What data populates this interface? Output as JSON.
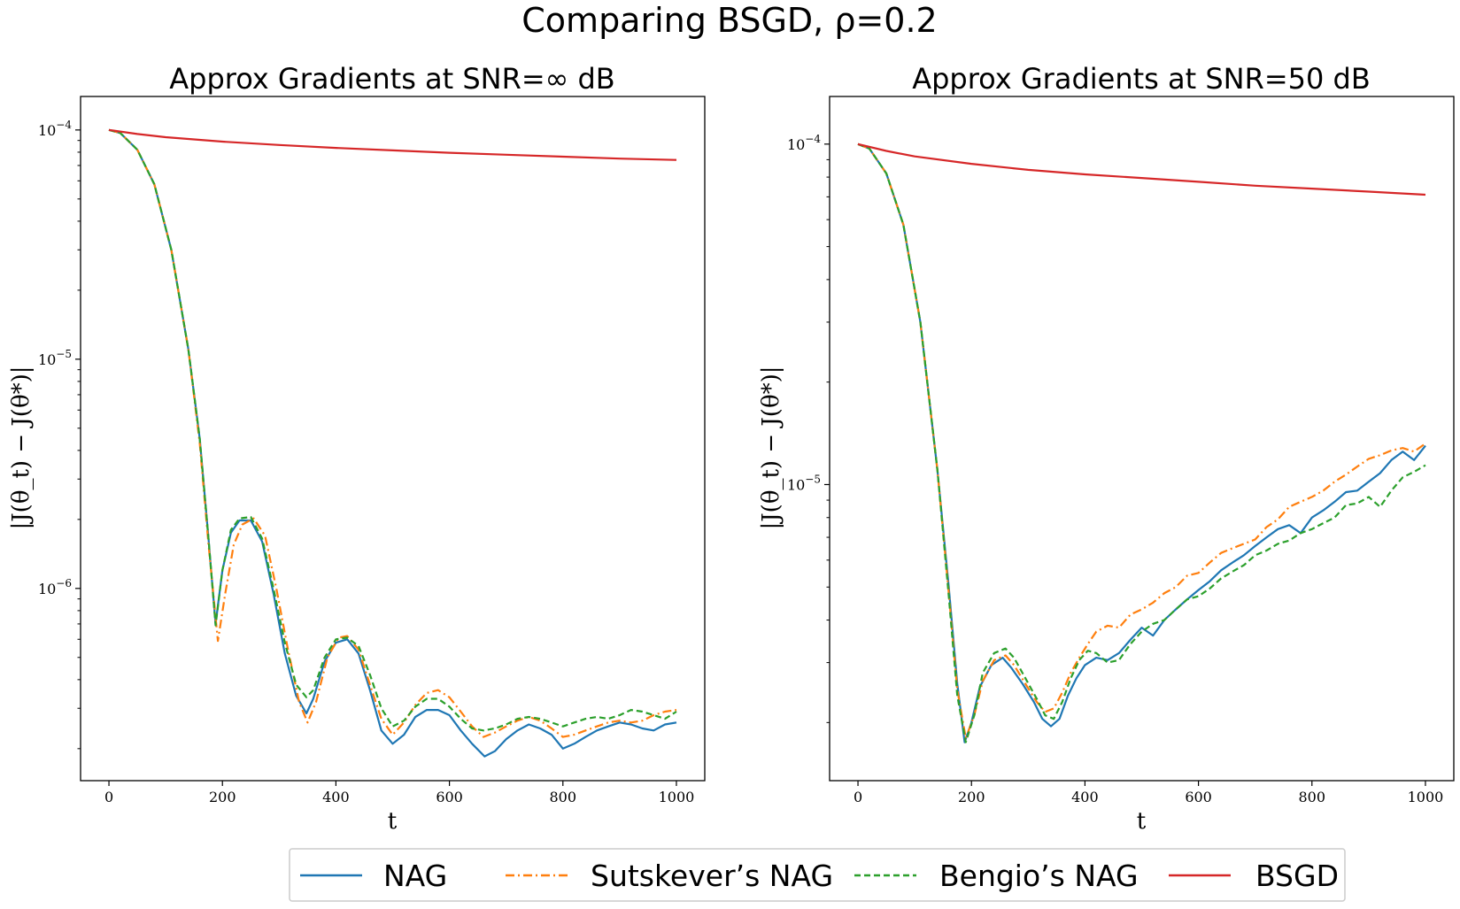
{
  "figure": {
    "suptitle": "Comparing BSGD, ρ=0.2"
  },
  "legend": {
    "placement": "lower-center",
    "entries": [
      {
        "label": "NAG",
        "color": "#1f77b4",
        "style": "solid"
      },
      {
        "label": "Sutskever’s NAG",
        "color": "#ff7f0e",
        "style": "dashdot"
      },
      {
        "label": "Bengio’s NAG",
        "color": "#2ca02c",
        "style": "dashed"
      },
      {
        "label": "BSGD",
        "color": "#d62728",
        "style": "solid"
      }
    ]
  },
  "chart_data": [
    {
      "type": "line",
      "title": "Approx Gradients at SNR=∞ dB",
      "xlabel": "t",
      "ylabel": "|J(θ_t) − J(θ*)|",
      "yscale": "log",
      "xlim": [
        -50,
        1050
      ],
      "ylim": [
        1.45e-07,
        0.00014
      ],
      "xticks": [
        0,
        200,
        400,
        600,
        800,
        1000
      ],
      "yticks": [
        {
          "value": 1e-06,
          "label": "10",
          "exp": "−6"
        },
        {
          "value": 1e-05,
          "label": "10",
          "exp": "−5"
        },
        {
          "value": 0.0001,
          "label": "10",
          "exp": "−4"
        }
      ],
      "grid": false,
      "series": [
        {
          "name": "NAG",
          "color": "#1f77b4",
          "style": "solid",
          "x": [
            0,
            20,
            50,
            80,
            110,
            140,
            160,
            175,
            188,
            200,
            215,
            230,
            250,
            270,
            290,
            310,
            330,
            348,
            360,
            380,
            400,
            420,
            440,
            460,
            480,
            500,
            520,
            540,
            560,
            580,
            600,
            620,
            640,
            662,
            680,
            700,
            720,
            740,
            760,
            780,
            800,
            820,
            840,
            860,
            880,
            900,
            920,
            940,
            960,
            980,
            1000
          ],
          "y": [
            0.0001,
            9.7e-05,
            8.2e-05,
            5.8e-05,
            3e-05,
            1.1e-05,
            4.5e-06,
            1.7e-06,
            7e-07,
            1.2e-06,
            1.75e-06,
            1.98e-06,
            1.98e-06,
            1.6e-06,
            9.5e-07,
            5.2e-07,
            3.4e-07,
            2.85e-07,
            3.3e-07,
            4.8e-07,
            5.8e-07,
            6e-07,
            5.2e-07,
            3.6e-07,
            2.4e-07,
            2.1e-07,
            2.3e-07,
            2.75e-07,
            2.95e-07,
            2.95e-07,
            2.8e-07,
            2.4e-07,
            2.1e-07,
            1.85e-07,
            1.95e-07,
            2.2e-07,
            2.4e-07,
            2.55e-07,
            2.45e-07,
            2.3e-07,
            2e-07,
            2.1e-07,
            2.25e-07,
            2.4e-07,
            2.5e-07,
            2.6e-07,
            2.55e-07,
            2.45e-07,
            2.4e-07,
            2.55e-07,
            2.6e-07
          ]
        },
        {
          "name": "Sutskever’s NAG",
          "color": "#ff7f0e",
          "style": "dashdot",
          "x": [
            0,
            20,
            50,
            80,
            110,
            140,
            160,
            175,
            192,
            205,
            220,
            235,
            255,
            275,
            295,
            315,
            335,
            350,
            365,
            385,
            405,
            420,
            440,
            460,
            480,
            500,
            520,
            540,
            560,
            580,
            600,
            620,
            640,
            660,
            680,
            700,
            720,
            740,
            760,
            780,
            800,
            820,
            840,
            860,
            880,
            900,
            920,
            940,
            960,
            980,
            1000
          ],
          "y": [
            0.0001,
            9.7e-05,
            8.2e-05,
            5.8e-05,
            3e-05,
            1.1e-05,
            4.3e-06,
            1.6e-06,
            5.9e-07,
            9.5e-07,
            1.55e-06,
            1.9e-06,
            2.02e-06,
            1.7e-06,
            1e-06,
            5.5e-07,
            3.2e-07,
            2.6e-07,
            3.2e-07,
            5e-07,
            6.1e-07,
            6.2e-07,
            5.4e-07,
            3.8e-07,
            2.7e-07,
            2.3e-07,
            2.6e-07,
            3.1e-07,
            3.5e-07,
            3.6e-07,
            3.35e-07,
            2.9e-07,
            2.5e-07,
            2.25e-07,
            2.35e-07,
            2.5e-07,
            2.65e-07,
            2.75e-07,
            2.65e-07,
            2.45e-07,
            2.25e-07,
            2.3e-07,
            2.4e-07,
            2.5e-07,
            2.6e-07,
            2.65e-07,
            2.6e-07,
            2.65e-07,
            2.8e-07,
            2.9e-07,
            2.95e-07
          ]
        },
        {
          "name": "Bengio’s NAG",
          "color": "#2ca02c",
          "style": "dashed",
          "x": [
            0,
            20,
            50,
            80,
            110,
            140,
            160,
            175,
            188,
            200,
            215,
            230,
            250,
            270,
            290,
            310,
            330,
            348,
            360,
            380,
            400,
            420,
            440,
            460,
            480,
            500,
            520,
            540,
            560,
            580,
            600,
            620,
            640,
            660,
            680,
            700,
            720,
            740,
            760,
            780,
            800,
            820,
            840,
            860,
            880,
            900,
            920,
            940,
            960,
            980,
            1000
          ],
          "y": [
            0.0001,
            9.7e-05,
            8.2e-05,
            5.8e-05,
            3e-05,
            1.1e-05,
            4.5e-06,
            1.7e-06,
            6.9e-07,
            1.2e-06,
            1.8e-06,
            2.02e-06,
            2.05e-06,
            1.65e-06,
            1e-06,
            5.8e-07,
            3.8e-07,
            3.35e-07,
            3.6e-07,
            5e-07,
            6e-07,
            6.1e-07,
            5.6e-07,
            4.2e-07,
            3e-07,
            2.5e-07,
            2.65e-07,
            3.05e-07,
            3.3e-07,
            3.3e-07,
            3.05e-07,
            2.7e-07,
            2.45e-07,
            2.4e-07,
            2.45e-07,
            2.55e-07,
            2.7e-07,
            2.75e-07,
            2.7e-07,
            2.6e-07,
            2.5e-07,
            2.6e-07,
            2.7e-07,
            2.75e-07,
            2.7e-07,
            2.8e-07,
            2.95e-07,
            2.9e-07,
            2.8e-07,
            2.7e-07,
            2.9e-07
          ]
        },
        {
          "name": "BSGD",
          "color": "#d62728",
          "style": "solid",
          "x": [
            0,
            50,
            100,
            200,
            300,
            400,
            500,
            600,
            700,
            800,
            900,
            1000
          ],
          "y": [
            0.0001,
            9.6e-05,
            9.3e-05,
            8.9e-05,
            8.6e-05,
            8.35e-05,
            8.15e-05,
            7.95e-05,
            7.8e-05,
            7.65e-05,
            7.5e-05,
            7.4e-05
          ]
        }
      ]
    },
    {
      "type": "line",
      "title": "Approx Gradients at SNR=50 dB",
      "xlabel": "t",
      "ylabel": "|J(θ_t) − J(θ*)|",
      "yscale": "log",
      "xlim": [
        -50,
        1050
      ],
      "ylim": [
        1.35e-06,
        0.000138
      ],
      "xticks": [
        0,
        200,
        400,
        600,
        800,
        1000
      ],
      "yticks": [
        {
          "value": 1e-05,
          "label": "10",
          "exp": "−5"
        },
        {
          "value": 0.0001,
          "label": "10",
          "exp": "−4"
        }
      ],
      "grid": false,
      "series": [
        {
          "name": "NAG",
          "color": "#1f77b4",
          "style": "solid",
          "x": [
            0,
            20,
            50,
            80,
            110,
            140,
            160,
            175,
            188,
            200,
            215,
            235,
            255,
            270,
            290,
            310,
            325,
            340,
            355,
            370,
            385,
            400,
            420,
            440,
            460,
            480,
            500,
            520,
            540,
            560,
            580,
            600,
            620,
            640,
            660,
            680,
            700,
            720,
            740,
            760,
            780,
            800,
            820,
            840,
            860,
            880,
            900,
            920,
            940,
            960,
            980,
            1000
          ],
          "y": [
            0.0001,
            9.7e-05,
            8.2e-05,
            5.8e-05,
            3e-05,
            1.1e-05,
            5e-06,
            2.6e-06,
            1.75e-06,
            2e-06,
            2.55e-06,
            2.95e-06,
            3.1e-06,
            2.9e-06,
            2.6e-06,
            2.3e-06,
            2.05e-06,
            1.95e-06,
            2.05e-06,
            2.4e-06,
            2.7e-06,
            2.95e-06,
            3.1e-06,
            3.05e-06,
            3.2e-06,
            3.5e-06,
            3.8e-06,
            3.6e-06,
            4e-06,
            4.3e-06,
            4.6e-06,
            4.9e-06,
            5.2e-06,
            5.6e-06,
            5.9e-06,
            6.2e-06,
            6.6e-06,
            7e-06,
            7.4e-06,
            7.6e-06,
            7.2e-06,
            8e-06,
            8.4e-06,
            8.9e-06,
            9.5e-06,
            9.6e-06,
            1.02e-05,
            1.08e-05,
            1.18e-05,
            1.25e-05,
            1.18e-05,
            1.3e-05
          ]
        },
        {
          "name": "Sutskever’s NAG",
          "color": "#ff7f0e",
          "style": "dashdot",
          "x": [
            0,
            20,
            50,
            80,
            110,
            140,
            160,
            175,
            190,
            205,
            220,
            240,
            260,
            275,
            295,
            315,
            330,
            345,
            360,
            375,
            390,
            405,
            420,
            440,
            460,
            480,
            500,
            520,
            540,
            560,
            580,
            600,
            620,
            640,
            660,
            680,
            700,
            720,
            740,
            760,
            780,
            800,
            820,
            840,
            860,
            880,
            900,
            920,
            940,
            960,
            980,
            1000
          ],
          "y": [
            0.0001,
            9.7e-05,
            8.2e-05,
            5.8e-05,
            3e-05,
            1.1e-05,
            4.8e-06,
            2.5e-06,
            1.8e-06,
            2.1e-06,
            2.65e-06,
            3.05e-06,
            3.15e-06,
            2.95e-06,
            2.6e-06,
            2.3e-06,
            2.15e-06,
            2.2e-06,
            2.45e-06,
            2.8e-06,
            3.1e-06,
            3.4e-06,
            3.7e-06,
            3.85e-06,
            3.8e-06,
            4.15e-06,
            4.3e-06,
            4.5e-06,
            4.8e-06,
            5e-06,
            5.4e-06,
            5.5e-06,
            5.9e-06,
            6.3e-06,
            6.5e-06,
            6.7e-06,
            6.9e-06,
            7.5e-06,
            7.9e-06,
            8.6e-06,
            8.9e-06,
            9.2e-06,
            9.6e-06,
            1.02e-05,
            1.07e-05,
            1.13e-05,
            1.19e-05,
            1.22e-05,
            1.26e-05,
            1.28e-05,
            1.25e-05,
            1.32e-05
          ]
        },
        {
          "name": "Bengio’s NAG",
          "color": "#2ca02c",
          "style": "dashed",
          "x": [
            0,
            20,
            50,
            80,
            110,
            140,
            160,
            175,
            190,
            205,
            220,
            240,
            260,
            275,
            295,
            315,
            330,
            345,
            360,
            375,
            390,
            405,
            420,
            440,
            460,
            480,
            500,
            520,
            540,
            560,
            580,
            600,
            620,
            640,
            660,
            680,
            700,
            720,
            740,
            760,
            780,
            800,
            820,
            840,
            860,
            880,
            900,
            920,
            940,
            960,
            980,
            1000
          ],
          "y": [
            0.0001,
            9.7e-05,
            8.2e-05,
            5.8e-05,
            3e-05,
            1.1e-05,
            4.7e-06,
            2.4e-06,
            1.75e-06,
            2.1e-06,
            2.8e-06,
            3.2e-06,
            3.3e-06,
            3.1e-06,
            2.7e-06,
            2.35e-06,
            2.1e-06,
            2.05e-06,
            2.3e-06,
            2.7e-06,
            3.05e-06,
            3.25e-06,
            3.2e-06,
            3e-06,
            3.05e-06,
            3.4e-06,
            3.7e-06,
            3.9e-06,
            4e-06,
            4.3e-06,
            4.6e-06,
            4.7e-06,
            4.95e-06,
            5.3e-06,
            5.55e-06,
            5.8e-06,
            6.2e-06,
            6.4e-06,
            6.7e-06,
            6.85e-06,
            7.2e-06,
            7.4e-06,
            7.7e-06,
            8e-06,
            8.7e-06,
            8.8e-06,
            9.2e-06,
            8.6e-06,
            9.6e-06,
            1.05e-05,
            1.09e-05,
            1.14e-05
          ]
        },
        {
          "name": "BSGD",
          "color": "#d62728",
          "style": "solid",
          "x": [
            0,
            50,
            100,
            200,
            300,
            400,
            500,
            600,
            700,
            800,
            900,
            1000
          ],
          "y": [
            0.0001,
            9.55e-05,
            9.2e-05,
            8.75e-05,
            8.4e-05,
            8.15e-05,
            7.95e-05,
            7.75e-05,
            7.55e-05,
            7.4e-05,
            7.25e-05,
            7.1e-05
          ]
        }
      ]
    }
  ]
}
